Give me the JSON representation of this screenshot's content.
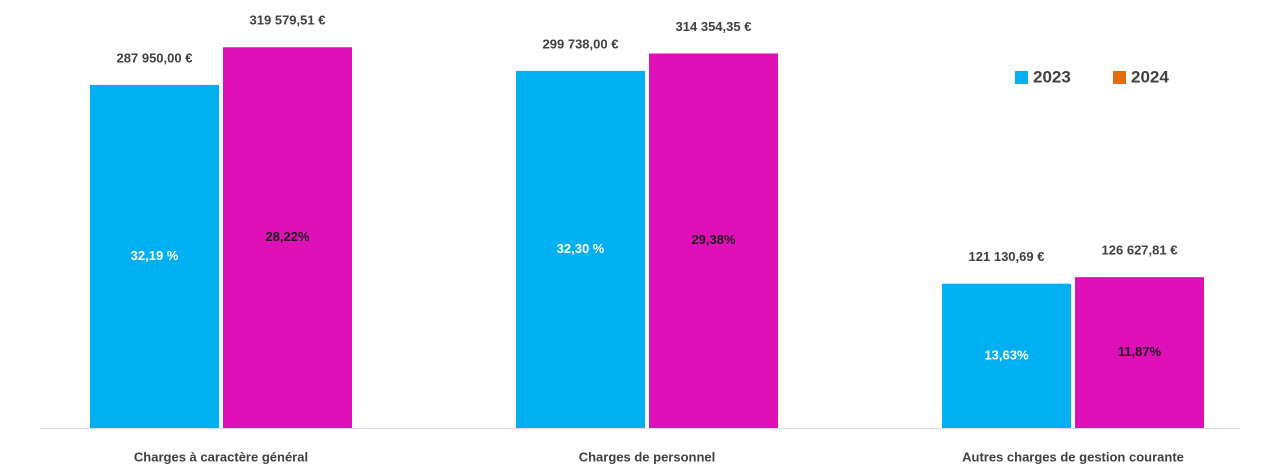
{
  "chart_data": {
    "type": "bar",
    "categories": [
      "Charges à caractère général",
      "Charges de personnel",
      "Autres charges de gestion courante"
    ],
    "series": [
      {
        "name": "2023",
        "color": "#00b0f0",
        "legend_color": "#00b0f0",
        "values": [
          287950.0,
          299738.0,
          121130.69
        ],
        "value_labels": [
          "287 950,00 €",
          "299 738,00 €",
          "121 130,69 €"
        ],
        "inner_labels": [
          "32,19 %",
          "32,30 %",
          "13,63%"
        ]
      },
      {
        "name": "2024",
        "color": "#e010b8",
        "legend_color": "#e46c0a",
        "values": [
          319579.51,
          314354.35,
          126627.81
        ],
        "value_labels": [
          "319 579,51 €",
          "314 354,35 €",
          "126 627,81 €"
        ],
        "inner_labels": [
          "28,22%",
          "29,38%",
          "11,87%"
        ]
      }
    ],
    "ylim": [
      0,
      350000
    ],
    "legend": "top-right"
  }
}
